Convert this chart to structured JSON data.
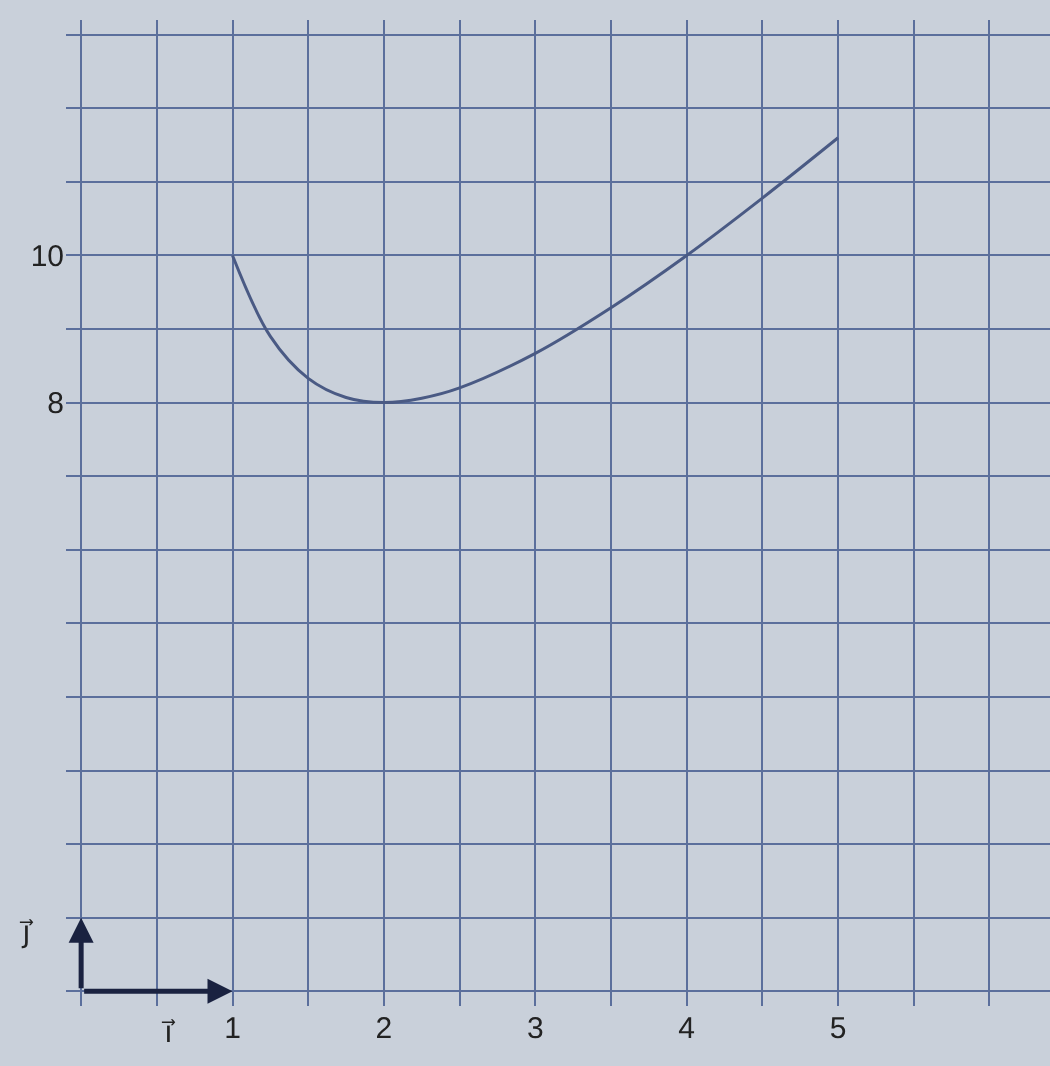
{
  "chart_data": {
    "type": "line",
    "x": [
      1,
      1.25,
      1.5,
      1.75,
      2,
      2.25,
      2.5,
      3,
      3.5,
      4,
      4.5,
      5
    ],
    "series": [
      {
        "color": "#4a5a84",
        "values": [
          10,
          8.9,
          8.33,
          8.07,
          8,
          8.06,
          8.2,
          8.67,
          9.29,
          10,
          10.78,
          11.6
        ]
      }
    ],
    "xlim": [
      -0.1,
      6.4
    ],
    "ylim": [
      -0.2,
      13.2
    ],
    "xticks": [
      {
        "value": 0,
        "label": null
      },
      {
        "value": 0.5,
        "label": null
      },
      1,
      {
        "value": 1.5,
        "label": null
      },
      2,
      {
        "value": 2.5,
        "label": null
      },
      3,
      {
        "value": 3.5,
        "label": null
      },
      4,
      {
        "value": 4.5,
        "label": null
      },
      5,
      {
        "value": 5.5,
        "label": null
      },
      {
        "value": 6,
        "label": null
      }
    ],
    "yticks": [
      {
        "value": 0,
        "label": null
      },
      {
        "value": 1,
        "label": null
      },
      {
        "value": 2,
        "label": null
      },
      {
        "value": 3,
        "label": null
      },
      {
        "value": 4,
        "label": null
      },
      {
        "value": 5,
        "label": null
      },
      {
        "value": 6,
        "label": null
      },
      {
        "value": 7,
        "label": null
      },
      8,
      {
        "value": 9,
        "label": null
      },
      10,
      {
        "value": 11,
        "label": null
      },
      {
        "value": 12,
        "label": null
      },
      {
        "value": 13,
        "label": null
      }
    ],
    "grid": true,
    "marker": "none",
    "line_style": "solid",
    "annotations": [
      "i⃗",
      "j⃗"
    ]
  }
}
